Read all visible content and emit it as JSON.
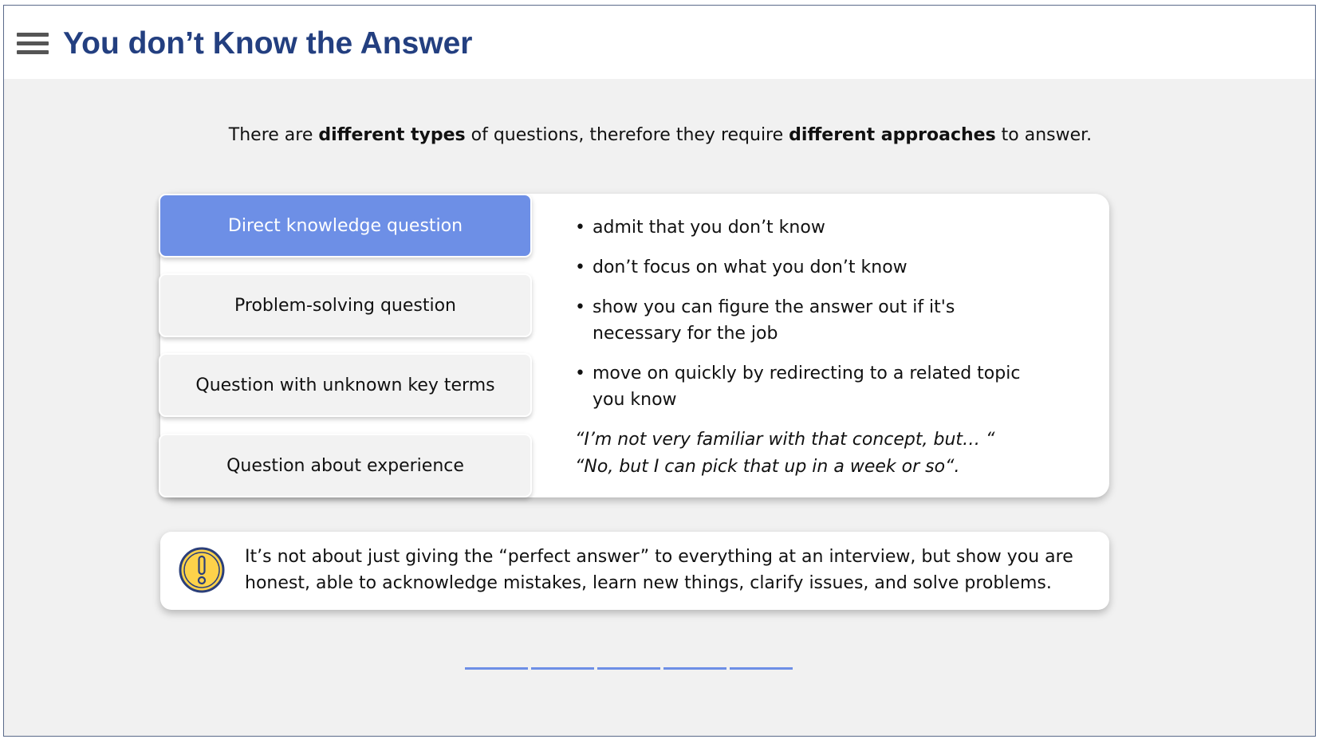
{
  "header": {
    "menu_icon": "hamburger-menu-icon",
    "title": "You don’t Know the Answer"
  },
  "intro": {
    "part1": "There are ",
    "bold1": "different types",
    "part2": " of questions, therefore they require ",
    "bold2": "different approaches",
    "part3": " to answer."
  },
  "tabs": [
    {
      "label": "Direct knowledge question",
      "active": true
    },
    {
      "label": "Problem-solving question",
      "active": false
    },
    {
      "label": "Question with unknown key terms",
      "active": false
    },
    {
      "label": "Question about experience",
      "active": false
    }
  ],
  "content": {
    "bullets": [
      "admit that you don’t know",
      "don’t focus on what you don’t know",
      "show you can figure the answer out if it's necessary for the job",
      "move on quickly by redirecting to a related topic you know"
    ],
    "quote1": "“I’m not very familiar with that concept, but… “",
    "quote2": "“No, but I can pick that up in a week or so“."
  },
  "note": {
    "icon": "exclamation-warning-icon",
    "text": "It’s not about just giving the “perfect answer” to everything at an interview, but show you are honest, able to acknowledge mistakes, learn new things, clarify issues, and solve problems."
  },
  "progress": {
    "total_steps": 5
  },
  "colors": {
    "title": "#233f80",
    "accent": "#6d8fe6",
    "warning_fill": "#fdd24a",
    "warning_ring": "#2b3f7a"
  }
}
